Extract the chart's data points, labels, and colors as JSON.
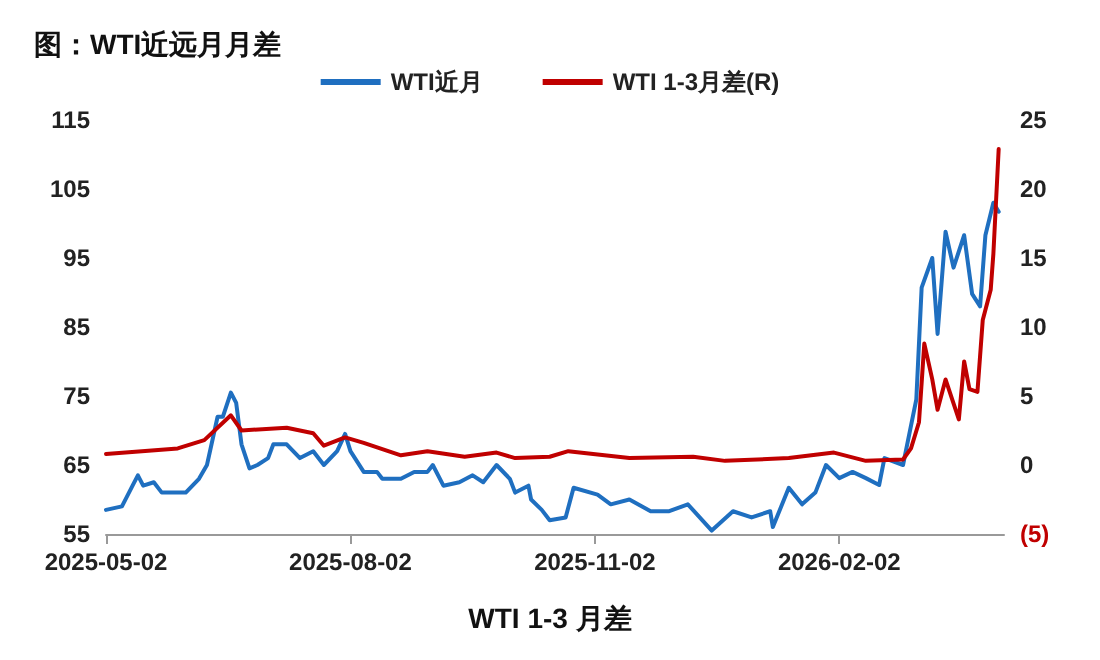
{
  "chart_data": {
    "type": "line",
    "title": "图：WTI近远月月差",
    "annotations": [
      "WTI 1-3 月差"
    ],
    "xlim": [
      "2025-05-02",
      "2026-04-05"
    ],
    "xticks": [
      "2025-05-02",
      "2025-08-02",
      "2025-11-02",
      "2026-02-02"
    ],
    "ylim": [
      55,
      115
    ],
    "yticks": [
      55,
      65,
      75,
      85,
      95,
      105,
      115
    ],
    "y2lim": [
      -5,
      25
    ],
    "y2ticks": [
      {
        "value": -5,
        "label": "(5)"
      },
      0,
      5,
      10,
      15,
      20,
      25
    ],
    "grid": false,
    "legend": "top",
    "marker": "none",
    "line_style": "solid",
    "series": [
      {
        "name": "WTI近月",
        "color": "#1f6fc0",
        "x": [
          "2025-05-02",
          "2025-05-08",
          "2025-05-12",
          "2025-05-14",
          "2025-05-16",
          "2025-05-20",
          "2025-05-23",
          "2025-06-01",
          "2025-06-06",
          "2025-06-09",
          "2025-06-13",
          "2025-06-15",
          "2025-06-18",
          "2025-06-20",
          "2025-06-22",
          "2025-06-25",
          "2025-06-28",
          "2025-07-02",
          "2025-07-04",
          "2025-07-09",
          "2025-07-14",
          "2025-07-19",
          "2025-07-23",
          "2025-07-28",
          "2025-07-31",
          "2025-08-02",
          "2025-08-07",
          "2025-08-12",
          "2025-08-14",
          "2025-08-21",
          "2025-08-26",
          "2025-08-31",
          "2025-09-02",
          "2025-09-06",
          "2025-09-12",
          "2025-09-17",
          "2025-09-21",
          "2025-09-26",
          "2025-10-01",
          "2025-10-03",
          "2025-10-08",
          "2025-10-09",
          "2025-10-13",
          "2025-10-16",
          "2025-10-22",
          "2025-10-25",
          "2025-11-03",
          "2025-11-08",
          "2025-11-15",
          "2025-11-23",
          "2025-11-30",
          "2025-12-07",
          "2025-12-16",
          "2025-12-24",
          "2025-12-31",
          "2026-01-07",
          "2026-01-08",
          "2026-01-14",
          "2026-01-19",
          "2026-01-24",
          "2026-01-28",
          "2026-02-02",
          "2026-02-07",
          "2026-02-12",
          "2026-02-17",
          "2026-02-19",
          "2026-02-26",
          "2026-03-03",
          "2026-03-05",
          "2026-03-09",
          "2026-03-11",
          "2026-03-14",
          "2026-03-17",
          "2026-03-21",
          "2026-03-24",
          "2026-03-27",
          "2026-03-29",
          "2026-04-01",
          "2026-04-03"
        ],
        "values": [
          58.5,
          59,
          62,
          63.5,
          62,
          62.5,
          61,
          61,
          63,
          65,
          72,
          72,
          75.5,
          74,
          68,
          64.5,
          65,
          66,
          68,
          68,
          66,
          67,
          65,
          67,
          69.5,
          67,
          64,
          64,
          63,
          63,
          64,
          64,
          65,
          62,
          62.5,
          63.5,
          62.5,
          65,
          63,
          61,
          62,
          60,
          58.5,
          57,
          57.4,
          61.7,
          60.7,
          59.3,
          60,
          58.3,
          58.3,
          59.3,
          55.5,
          58.3,
          57.4,
          58.3,
          56,
          61.7,
          59.3,
          61,
          65,
          63.1,
          64,
          63.1,
          62.1,
          66,
          65,
          74.5,
          90.7,
          95,
          84,
          98.8,
          93.6,
          98.3,
          89.8,
          88,
          98.3,
          103,
          101.7
        ]
      },
      {
        "name": "WTI 1-3月差(R)",
        "color": "#c00000",
        "axis": "y2",
        "x": [
          "2025-05-02",
          "2025-05-29",
          "2025-06-08",
          "2025-06-18",
          "2025-06-22",
          "2025-07-09",
          "2025-07-19",
          "2025-07-23",
          "2025-07-31",
          "2025-08-07",
          "2025-08-21",
          "2025-08-31",
          "2025-09-14",
          "2025-09-26",
          "2025-10-03",
          "2025-10-16",
          "2025-10-23",
          "2025-11-15",
          "2025-12-09",
          "2025-12-21",
          "2026-01-14",
          "2026-01-31",
          "2026-02-12",
          "2026-02-26",
          "2026-03-01",
          "2026-03-04",
          "2026-03-06",
          "2026-03-09",
          "2026-03-11",
          "2026-03-14",
          "2026-03-19",
          "2026-03-21",
          "2026-03-23",
          "2026-03-26",
          "2026-03-28",
          "2026-03-31",
          "2026-04-01",
          "2026-04-03"
        ],
        "values": [
          0.8,
          1.2,
          1.8,
          3.6,
          2.5,
          2.7,
          2.3,
          1.4,
          2,
          1.6,
          0.7,
          1,
          0.6,
          0.9,
          0.5,
          0.6,
          1,
          0.5,
          0.6,
          0.3,
          0.5,
          0.9,
          0.3,
          0.4,
          1.2,
          3.1,
          8.8,
          6.2,
          4,
          6.2,
          3.3,
          7.5,
          5.5,
          5.3,
          10.5,
          12.7,
          15.3,
          22.9
        ]
      }
    ]
  }
}
